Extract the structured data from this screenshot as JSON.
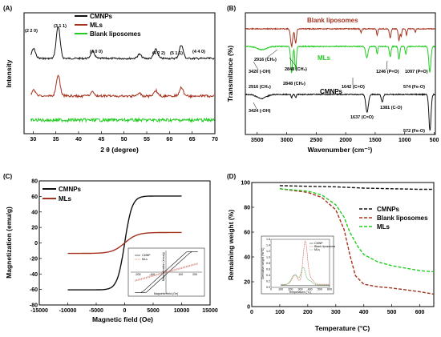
{
  "colors": {
    "black": "#111111",
    "red": "#a5321f",
    "green": "#22cc22",
    "pink": "#f2a0a8"
  },
  "chart_data": [
    {
      "panel": "(A)",
      "type": "line",
      "xlabel": "2 θ (degree)",
      "ylabel": "Intensity",
      "xlim": [
        28,
        70
      ],
      "xticks": [
        30,
        35,
        40,
        45,
        50,
        55,
        60,
        65,
        70
      ],
      "legend": "top-left",
      "series": [
        {
          "name": "CMNPs",
          "color": "#111111",
          "peaks": [
            [
              30.1,
              0.3
            ],
            [
              35.5,
              1.0
            ],
            [
              43.1,
              0.22
            ],
            [
              53.4,
              0.13
            ],
            [
              57.0,
              0.28
            ],
            [
              62.6,
              0.42
            ]
          ]
        },
        {
          "name": "MLs",
          "color": "#a5321f",
          "peaks": [
            [
              30.1,
              0.25
            ],
            [
              35.5,
              0.85
            ],
            [
              43.1,
              0.18
            ],
            [
              53.4,
              0.1
            ],
            [
              57.0,
              0.22
            ],
            [
              62.6,
              0.35
            ]
          ]
        },
        {
          "name": "Blank liposomes",
          "color": "#22cc22",
          "peaks": []
        }
      ],
      "annotations": [
        "(2 2 0)",
        "(3 1 1)",
        "(4 0 0)",
        "(4 2 2)",
        "(5 1 1)",
        "(4 4 0)"
      ]
    },
    {
      "panel": "(B)",
      "type": "line",
      "xlabel": "Wavenumber (cm⁻¹)",
      "ylabel": "Transmitance (%)",
      "xlim": [
        3700,
        480
      ],
      "xticks": [
        3500,
        3000,
        2500,
        2000,
        1500,
        1000,
        500
      ],
      "series": [
        {
          "name": "Blank liposomes",
          "color": "#a5321f"
        },
        {
          "name": "MLs",
          "color": "#22cc22"
        },
        {
          "name": "CMNPs",
          "color": "#111111"
        }
      ],
      "annotations": [
        "2916 (CH₂)",
        "2848 (CH₂)",
        "3420 (-OH)",
        "1246 (P=O)",
        "1097 (P=O)",
        "1642 (C=O)",
        "574 (Fe-O)",
        "2916 (CH₂)",
        "2848 (CH₂)",
        "3424 (-OH)",
        "1637 (C=O)",
        "1381 (C-O)",
        "572 (Fe-O)"
      ]
    },
    {
      "panel": "(C)",
      "type": "line",
      "xlabel": "Magnetic field (Oe)",
      "ylabel": "Magnetization (emu/g)",
      "xlim": [
        -15000,
        15000
      ],
      "ylim": [
        -80,
        80
      ],
      "xticks": [
        -15000,
        -10000,
        -5000,
        0,
        5000,
        10000,
        15000
      ],
      "yticks": [
        -80,
        -60,
        -40,
        -20,
        0,
        20,
        40,
        60,
        80
      ],
      "legend": "top-left",
      "series": [
        {
          "name": "CMNPs",
          "color": "#111111",
          "ms": 60.5,
          "hs": 1300
        },
        {
          "name": "MLs",
          "color": "#a5321f",
          "ms": 13.5,
          "hs": 2200
        }
      ],
      "inset": {
        "xlabel": "Magnetic field (Oe)",
        "ylabel": "Magnetization (emu/g)",
        "xticks": [
          -200,
          -100,
          100,
          200
        ],
        "series": [
          {
            "name": "CMNP"
          },
          {
            "name": "MLs"
          }
        ]
      }
    },
    {
      "panel": "(D)",
      "type": "line",
      "xlabel": "Temperature (°C)",
      "ylabel": "Remaining weight (%)",
      "xlim": [
        0,
        650
      ],
      "ylim": [
        0,
        100
      ],
      "xticks": [
        0,
        100,
        200,
        300,
        400,
        500,
        600
      ],
      "yticks": [
        0,
        20,
        40,
        60,
        80,
        100
      ],
      "legend": "right",
      "series": [
        {
          "name": "CMNPs",
          "color": "#111111",
          "x": [
            100,
            200,
            300,
            400,
            500,
            600,
            650
          ],
          "y": [
            97.5,
            97,
            96.5,
            95.5,
            95,
            94.5,
            94.5
          ]
        },
        {
          "name": "Blank liposomes",
          "color": "#a5321f",
          "x": [
            100,
            200,
            250,
            300,
            330,
            350,
            370,
            400,
            450,
            500,
            600,
            650
          ],
          "y": [
            95,
            92,
            88,
            78,
            62,
            42,
            25,
            18,
            16,
            15,
            12,
            10
          ]
        },
        {
          "name": "MLs",
          "color": "#22cc22",
          "x": [
            100,
            200,
            250,
            300,
            330,
            350,
            380,
            400,
            450,
            500,
            600,
            650
          ],
          "y": [
            95,
            93,
            90,
            82,
            72,
            60,
            48,
            42,
            36,
            33,
            29,
            28
          ]
        }
      ],
      "inset": {
        "xlabel": "Temperature (°C)",
        "ylabel": "Derivative weight (%/°C)",
        "xticks": [
          0,
          100,
          200,
          300,
          400,
          500,
          600
        ],
        "yticks": [
          0.0,
          0.2,
          0.4,
          0.6,
          0.8,
          1.0,
          1.2,
          1.4,
          1.6
        ],
        "series": [
          {
            "name": "CMNP"
          },
          {
            "name": "Blank liposomes"
          },
          {
            "name": "MLs"
          }
        ]
      }
    }
  ]
}
